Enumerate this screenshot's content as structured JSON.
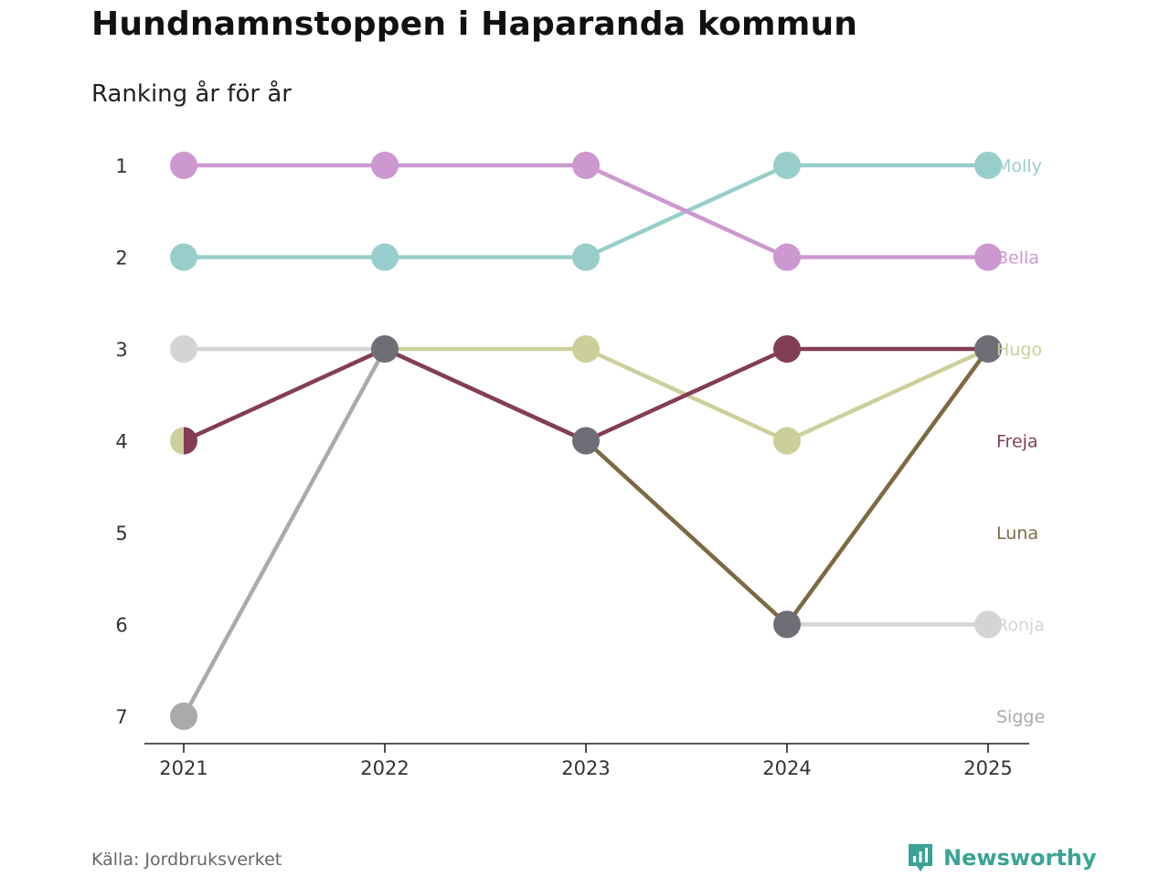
{
  "header": {
    "title": "Hundnamnstoppen i Haparanda kommun",
    "subtitle": "Ranking år för år"
  },
  "footer": {
    "source": "Källa: Jordbruksverket",
    "brand": "Newsworthy"
  },
  "chart_data": {
    "type": "line",
    "title": "Hundnamnstoppen i Haparanda kommun",
    "subtitle": "Ranking år för år",
    "xlabel": "",
    "ylabel": "",
    "categories": [
      "2021",
      "2022",
      "2023",
      "2024",
      "2025"
    ],
    "y_ticks": [
      "1",
      "2",
      "3",
      "4",
      "5",
      "6",
      "7"
    ],
    "ylim": [
      1,
      7
    ],
    "y_inverted": true,
    "grid": false,
    "label_rows": [
      1,
      2,
      3,
      4,
      5,
      6,
      7
    ],
    "series": [
      {
        "name": "Sigge",
        "color": "#aaaaaa",
        "values": [
          7,
          3,
          null,
          null,
          null
        ]
      },
      {
        "name": "Ronja",
        "color": "#d4d4d4",
        "values": [
          3,
          3,
          null,
          6,
          6
        ]
      },
      {
        "name": "Hugo",
        "color": "#cccf9a",
        "values": [
          4,
          3,
          3,
          4,
          3
        ]
      },
      {
        "name": "Molly",
        "color": "#97cecb",
        "values": [
          2,
          2,
          2,
          1,
          1
        ]
      },
      {
        "name": "Bella",
        "color": "#cd97cf",
        "values": [
          1,
          1,
          1,
          2,
          2
        ]
      },
      {
        "name": "Luna",
        "color": "#7d6a42",
        "values": [
          null,
          3,
          4,
          6,
          3
        ]
      },
      {
        "name": "Freja",
        "color": "#833e57",
        "values": [
          4,
          3,
          4,
          3,
          3
        ]
      }
    ],
    "tie_marker_color": "#6e6e76"
  }
}
